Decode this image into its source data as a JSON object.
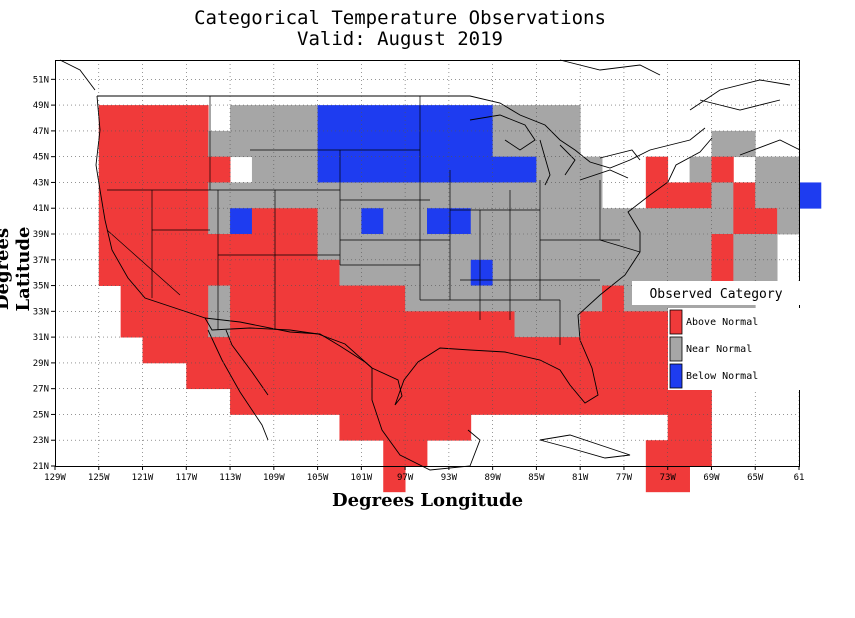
{
  "title_line1": "Categorical Temperature Observations",
  "title_line2": "Valid: August 2019",
  "axis": {
    "x_label": "Degrees Longitude",
    "y_label": "Degrees Latitude",
    "x_ticks": [
      "129W",
      "125W",
      "121W",
      "117W",
      "113W",
      "109W",
      "105W",
      "101W",
      "97W",
      "93W",
      "89W",
      "85W",
      "81W",
      "77W",
      "73W",
      "69W",
      "65W",
      "61"
    ],
    "x_values": [
      -129,
      -125,
      -121,
      -117,
      -113,
      -109,
      -105,
      -101,
      -97,
      -93,
      -89,
      -85,
      -81,
      -77,
      -73,
      -69,
      -65,
      -61
    ],
    "y_ticks": [
      "21N",
      "23N",
      "25N",
      "27N",
      "29N",
      "31N",
      "33N",
      "35N",
      "37N",
      "39N",
      "41N",
      "43N",
      "45N",
      "47N",
      "49N",
      "51N"
    ],
    "y_values": [
      21,
      23,
      25,
      27,
      29,
      31,
      33,
      35,
      37,
      39,
      41,
      43,
      45,
      47,
      49,
      51
    ],
    "lon_range": [
      -129,
      -61
    ],
    "lat_range": [
      21,
      52.5
    ]
  },
  "legend": {
    "title": "Observed Category",
    "items": [
      {
        "label": "Above Normal",
        "color": "#f03a3a"
      },
      {
        "label": "Near Normal",
        "color": "#a6a6a6"
      },
      {
        "label": "Below Normal",
        "color": "#1e3cf0"
      }
    ]
  },
  "colors": {
    "A": "#f03a3a",
    "N": "#a6a6a6",
    "B": "#1e3cf0"
  },
  "grid_cells": {
    "lon_start": -125,
    "lat_start": 49,
    "cell_deg": 2,
    "rows": [
      "AAAAA.NNNNBBBBBBBBNNNN.........",
      "AAAAANNNNNBBBBBBBBNNNN......NN.",
      "AAAAAA.NNNBBBBBBBBBBNNN..A.NA.NN",
      "AAAAANNNNNNNNNNNNNNNNNN..AAANANNB",
      "AAAAANBAAANNBNNBBNNNNNNNNNNNNAAN.",
      "AAAAAAAAAANNNNNNNNNNNNNNNNNNANN..",
      "AAAAAAAAAAANNNNNNBNNNNNNNNNNANN..",
      ".AAAANAAAAAAAANNNNNNNNNANNNNNN...",
      ".AAAANAAAAAAAAAAAAANNNAAAAAA.....",
      "..AAAAAAAAAAAAAAAAAAAAAAAAA......",
      "....AAAAAAAAAAAAAAAAAAAAAAA......",
      "......AAAAAAAAAAAAAAAAAAAAAA.....",
      "...........AAAAAA.........AA.....",
      ".............AA..........AAA.....",
      ".............A...........AA......"
    ]
  }
}
